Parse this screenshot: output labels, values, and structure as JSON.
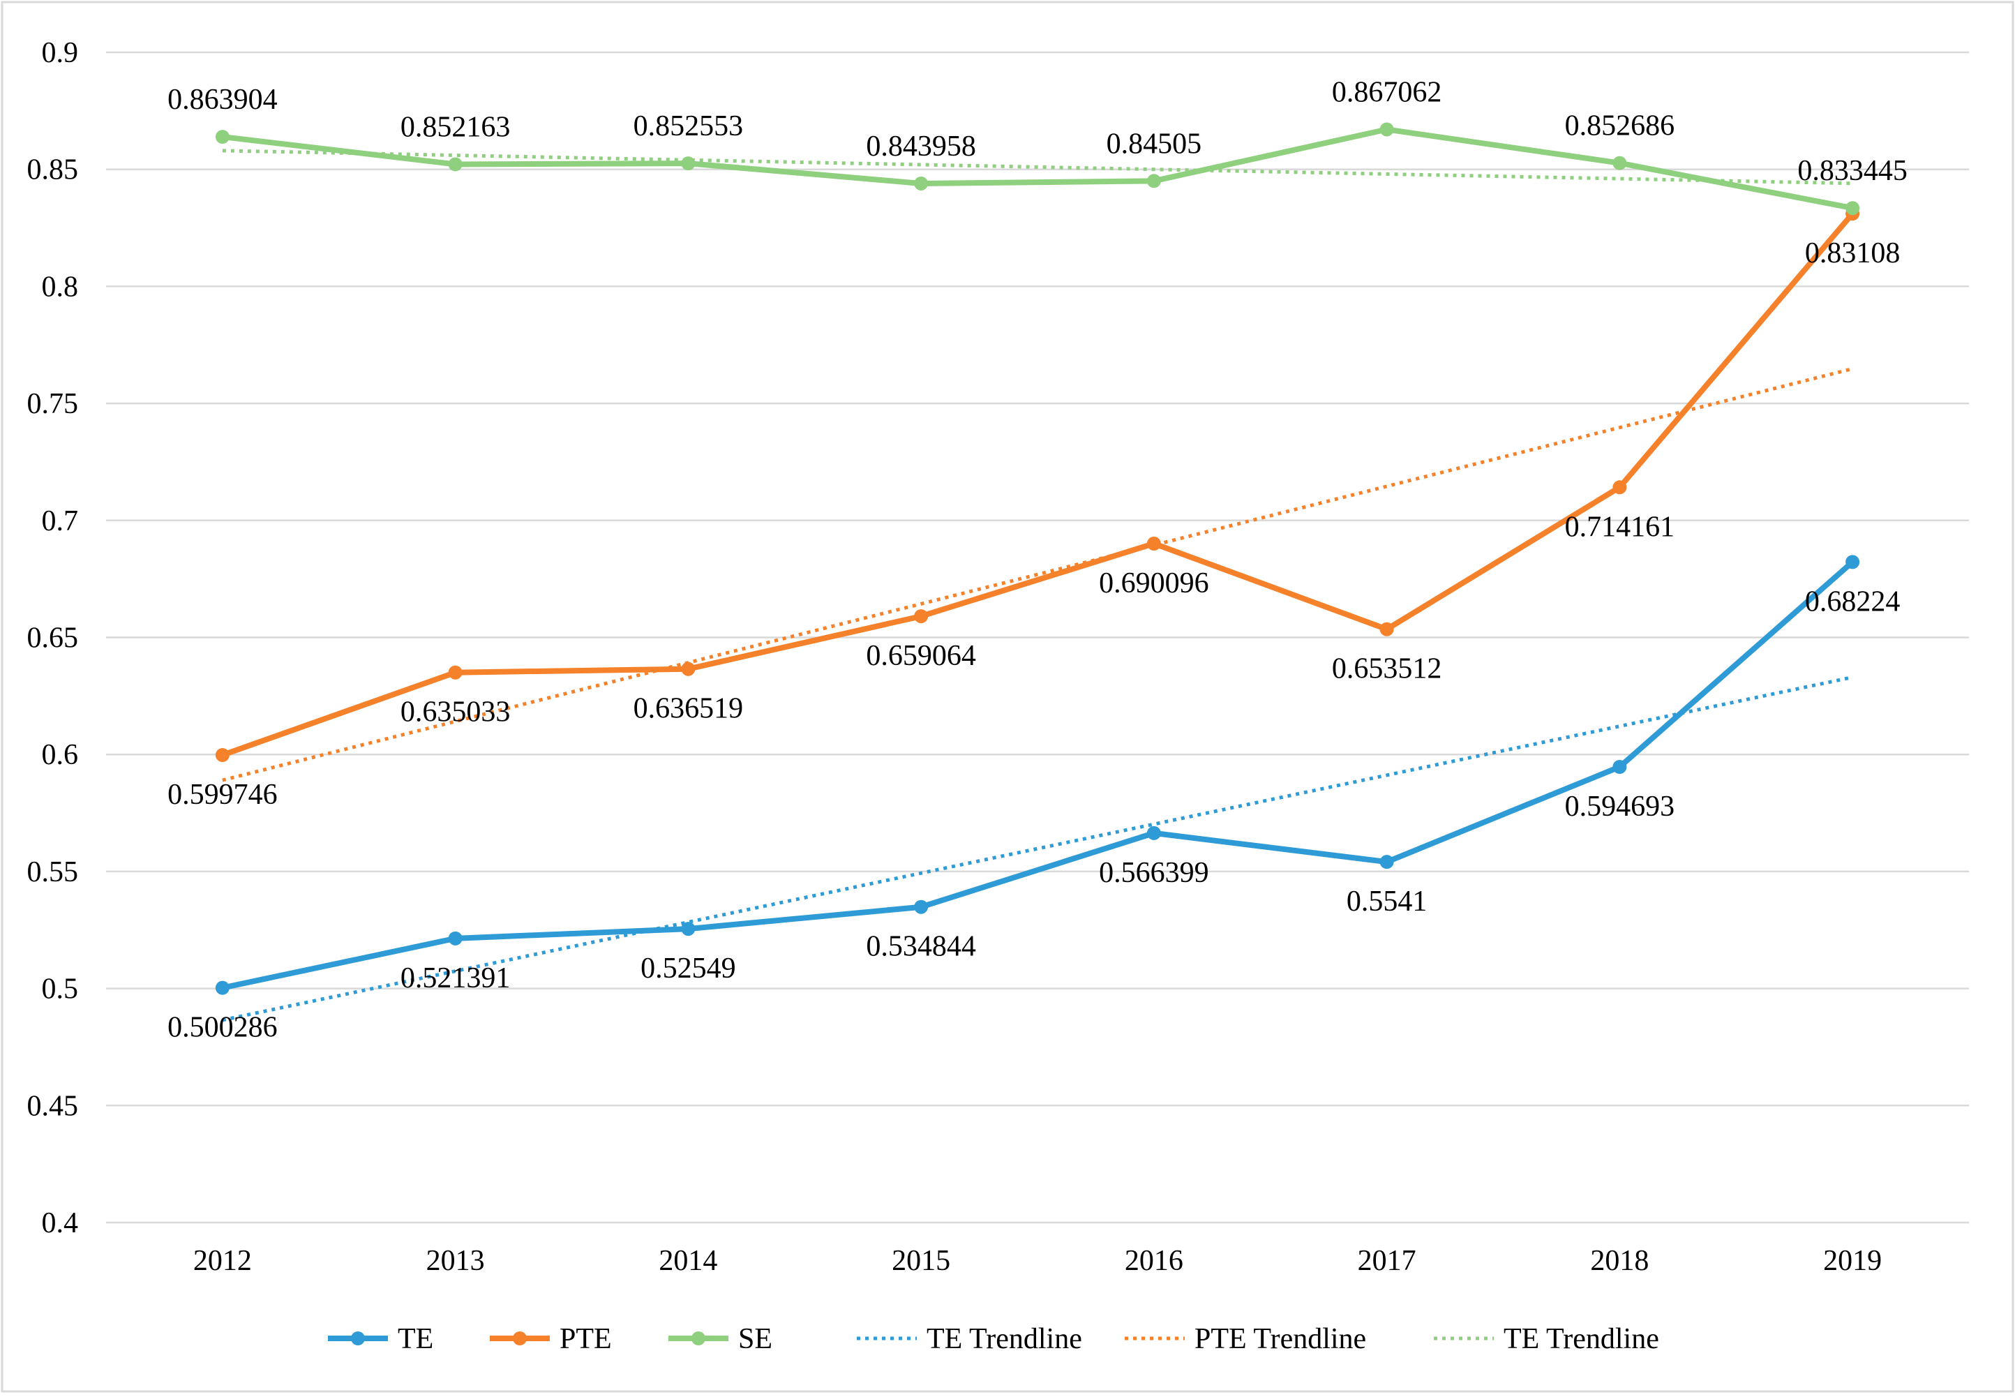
{
  "chart_data": {
    "type": "line",
    "title": "",
    "xlabel": "",
    "ylabel": "",
    "categories": [
      "2012",
      "2013",
      "2014",
      "2015",
      "2016",
      "2017",
      "2018",
      "2019"
    ],
    "ylim": [
      0.4,
      0.9
    ],
    "yticks": [
      "0.4",
      "0.45",
      "0.5",
      "0.55",
      "0.6",
      "0.65",
      "0.7",
      "0.75",
      "0.8",
      "0.85",
      "0.9"
    ],
    "grid": "horizontal",
    "legend_position": "bottom",
    "series": [
      {
        "name": "TE",
        "color": "#2E9BD6",
        "values": [
          0.500286,
          0.521391,
          0.52549,
          0.534844,
          0.566399,
          0.5541,
          0.594693,
          0.68224
        ],
        "labels": [
          "0.500286",
          "0.521391",
          "0.52549",
          "0.534844",
          "0.566399",
          "0.5541",
          "0.594693",
          "0.68224"
        ]
      },
      {
        "name": "PTE",
        "color": "#F5812A",
        "values": [
          0.599746,
          0.635033,
          0.636519,
          0.659064,
          0.690096,
          0.653512,
          0.714161,
          0.83108
        ],
        "labels": [
          "0.599746",
          "0.635033",
          "0.636519",
          "0.659064",
          "0.690096",
          "0.653512",
          "0.714161",
          "0.83108"
        ]
      },
      {
        "name": "SE",
        "color": "#8FD07F",
        "values": [
          0.863904,
          0.852163,
          0.852553,
          0.843958,
          0.84505,
          0.867062,
          0.852686,
          0.833445
        ],
        "labels": [
          "0.863904",
          "0.852163",
          "0.852553",
          "0.843958",
          "0.84505",
          "0.867062",
          "0.852686",
          "0.833445"
        ]
      }
    ],
    "trendlines": [
      {
        "name": "TE Trendline",
        "color": "#2E9BD6",
        "start": 0.4865,
        "end": 0.633
      },
      {
        "name": "PTE Trendline",
        "color": "#F5812A",
        "start": 0.589,
        "end": 0.7648
      },
      {
        "name": "TE Trendline",
        "color": "#8FD07F",
        "start": 0.858,
        "end": 0.844
      }
    ]
  }
}
